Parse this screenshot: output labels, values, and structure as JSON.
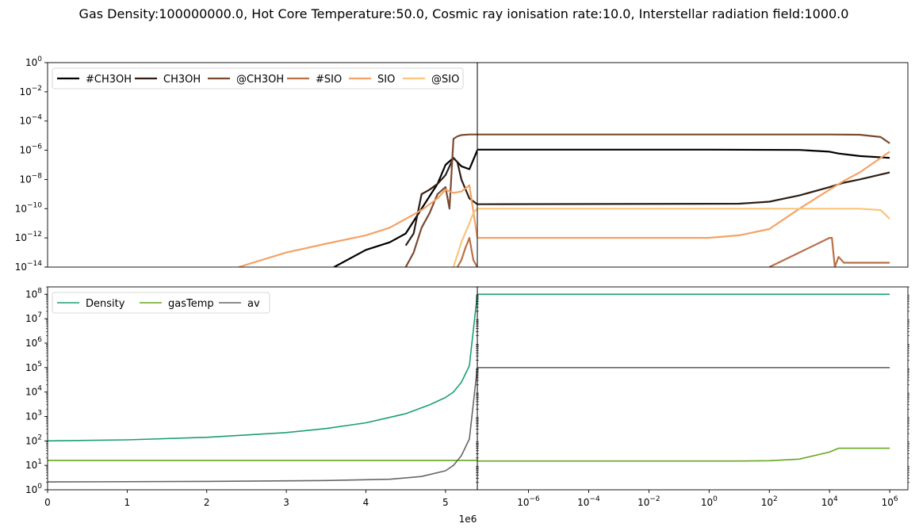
{
  "figure": {
    "suptitle": "Gas Density:100000000.0, Hot Core Temperature:50.0, Cosmic ray ionisation rate:10.0, Interstellar radiation field:1000.0",
    "offset_text": "1e6"
  },
  "chart_data": [
    {
      "type": "line",
      "panel": "top-left",
      "xscale": "linear",
      "yscale": "log",
      "xlim": [
        0,
        5400000
      ],
      "ylim": [
        1e-14,
        1
      ],
      "xticks": [],
      "yticks": [
        {
          "label": "10",
          "exp": "0",
          "value": 1
        },
        {
          "label": "10",
          "exp": "−2",
          "value": 0.01
        },
        {
          "label": "10",
          "exp": "−4",
          "value": 0.0001
        },
        {
          "label": "10",
          "exp": "−6",
          "value": 1e-06
        },
        {
          "label": "10",
          "exp": "−8",
          "value": 1e-08
        },
        {
          "label": "10",
          "exp": "−10",
          "value": 1e-10
        },
        {
          "label": "10",
          "exp": "−12",
          "value": 1e-12
        },
        {
          "label": "10",
          "exp": "−14",
          "value": 1e-14
        }
      ],
      "legend": {
        "placement": "top-left",
        "columns": 6
      },
      "series": [
        {
          "name": "#CH3OH",
          "color": "#000000",
          "x": [
            3600000,
            4000000,
            4300000,
            4500000,
            4700000,
            4900000,
            5000000,
            5100000,
            5200000,
            5300000,
            5400000
          ],
          "y": [
            1e-14,
            1.5e-13,
            5e-13,
            2e-12,
            1e-10,
            5e-09,
            1e-07,
            3e-07,
            8e-08,
            5e-08,
            1e-06
          ]
        },
        {
          "name": "CH3OH",
          "color": "#2e1e14",
          "x": [
            4500000,
            4600000,
            4700000,
            4800000,
            4900000,
            5000000,
            5100000,
            5150000,
            5200000,
            5300000,
            5400000
          ],
          "y": [
            3e-13,
            2e-12,
            1e-09,
            2e-09,
            5e-09,
            2e-08,
            3e-07,
            1.5e-07,
            1e-08,
            5e-10,
            2e-10
          ]
        },
        {
          "name": "@CH3OH",
          "color": "#7a4a30",
          "x": [
            4500000,
            4600000,
            4700000,
            4800000,
            4900000,
            5000000,
            5050000,
            5100000,
            5150000,
            5200000,
            5300000,
            5400000
          ],
          "y": [
            1e-14,
            1e-13,
            5e-12,
            5e-11,
            1e-09,
            3e-09,
            1e-10,
            6e-06,
            9e-06,
            1.1e-05,
            1.2e-05,
            1.2e-05
          ]
        },
        {
          "name": "#SIO",
          "color": "#b87048",
          "x": [
            5150000,
            5200000,
            5250000,
            5300000,
            5350000,
            5400000
          ],
          "y": [
            1e-14,
            3e-14,
            2e-13,
            1e-12,
            3e-14,
            1e-14
          ]
        },
        {
          "name": "SIO",
          "color": "#f4a266",
          "x": [
            2400000,
            3000000,
            3500000,
            4000000,
            4300000,
            4500000,
            4700000,
            4900000,
            5000000,
            5100000,
            5200000,
            5300000,
            5400000
          ],
          "y": [
            1e-14,
            1e-13,
            4e-13,
            1.5e-12,
            5e-12,
            2e-11,
            8e-11,
            5e-10,
            2e-09,
            1.2e-09,
            1.5e-09,
            4e-09,
            1e-12
          ]
        },
        {
          "name": "@SIO",
          "color": "#f8c57c",
          "x": [
            5100000,
            5200000,
            5300000,
            5350000,
            5400000
          ],
          "y": [
            1e-14,
            5e-13,
            1e-11,
            5e-11,
            1e-10
          ]
        }
      ]
    },
    {
      "type": "line",
      "panel": "top-right",
      "xscale": "log",
      "yscale": "log",
      "xlim": [
        2e-08,
        4000000
      ],
      "ylim": [
        1e-14,
        1
      ],
      "xticks": [],
      "yticks": [],
      "series": [
        {
          "name": "#CH3OH",
          "color": "#000000",
          "x": [
            2e-08,
            1,
            1000,
            10000,
            20000,
            100000,
            1000000
          ],
          "y": [
            1.1e-06,
            1.1e-06,
            1.05e-06,
            8e-07,
            6e-07,
            4e-07,
            3e-07
          ]
        },
        {
          "name": "CH3OH",
          "color": "#2e1e14",
          "x": [
            2e-08,
            10,
            100,
            1000,
            10000,
            30000,
            100000,
            1000000
          ],
          "y": [
            2e-10,
            2.2e-10,
            3e-10,
            8e-10,
            3e-09,
            6e-09,
            1e-08,
            3e-08
          ]
        },
        {
          "name": "@CH3OH",
          "color": "#7a4a30",
          "x": [
            2e-08,
            10000,
            100000,
            500000,
            1000000
          ],
          "y": [
            1.2e-05,
            1.2e-05,
            1.15e-05,
            8e-06,
            3e-06
          ]
        },
        {
          "name": "#SIO",
          "color": "#b87048",
          "x": [
            100,
            1000,
            10000,
            12000,
            15000,
            20000,
            25000,
            30000,
            50000,
            100000,
            1000000
          ],
          "y": [
            1e-14,
            1e-13,
            1e-12,
            1e-12,
            1e-14,
            5e-14,
            3e-14,
            2e-14,
            2e-14,
            2e-14,
            2e-14
          ]
        },
        {
          "name": "SIO",
          "color": "#f4a266",
          "x": [
            2e-08,
            1,
            10,
            100,
            1000,
            10000,
            30000,
            100000,
            1000000
          ],
          "y": [
            1e-12,
            1e-12,
            1.5e-12,
            4e-12,
            1e-10,
            2e-09,
            8e-09,
            3e-08,
            8e-07
          ]
        },
        {
          "name": "@SIO",
          "color": "#f8c57c",
          "x": [
            2e-08,
            10000,
            100000,
            500000,
            1000000
          ],
          "y": [
            1e-10,
            1e-10,
            1e-10,
            8e-11,
            2e-11
          ]
        }
      ]
    },
    {
      "type": "line",
      "panel": "bottom-left",
      "xscale": "linear",
      "yscale": "log",
      "xlim": [
        0,
        5400000
      ],
      "ylim": [
        1,
        200000000
      ],
      "xticks": [
        {
          "label": "0",
          "value": 0
        },
        {
          "label": "1",
          "value": 1000000
        },
        {
          "label": "2",
          "value": 2000000
        },
        {
          "label": "3",
          "value": 3000000
        },
        {
          "label": "4",
          "value": 4000000
        },
        {
          "label": "5",
          "value": 5000000
        }
      ],
      "yticks": [
        {
          "label": "10",
          "exp": "8",
          "value": 100000000
        },
        {
          "label": "10",
          "exp": "7",
          "value": 10000000
        },
        {
          "label": "10",
          "exp": "6",
          "value": 1000000
        },
        {
          "label": "10",
          "exp": "5",
          "value": 100000
        },
        {
          "label": "10",
          "exp": "4",
          "value": 10000
        },
        {
          "label": "10",
          "exp": "3",
          "value": 1000
        },
        {
          "label": "10",
          "exp": "2",
          "value": 100
        },
        {
          "label": "10",
          "exp": "1",
          "value": 10
        },
        {
          "label": "10",
          "exp": "0",
          "value": 1
        }
      ],
      "legend": {
        "placement": "top-left",
        "columns": 3
      },
      "series": [
        {
          "name": "Density",
          "color": "#1b9e77",
          "x": [
            0,
            1000000,
            2000000,
            3000000,
            3500000,
            4000000,
            4500000,
            4800000,
            5000000,
            5100000,
            5200000,
            5300000,
            5400000
          ],
          "y": [
            100,
            110,
            140,
            220,
            320,
            550,
            1300,
            3000,
            6000,
            10000,
            25000,
            120000,
            100000000
          ]
        },
        {
          "name": "gasTemp",
          "color": "#66a61e",
          "x": [
            0,
            5400000
          ],
          "y": [
            16,
            16
          ]
        },
        {
          "name": "av",
          "color": "#666666",
          "x": [
            0,
            2000000,
            3500000,
            4300000,
            4700000,
            5000000,
            5100000,
            5200000,
            5300000,
            5400000
          ],
          "y": [
            2.1,
            2.2,
            2.4,
            2.7,
            3.5,
            6,
            10,
            25,
            120,
            100000
          ]
        }
      ]
    },
    {
      "type": "line",
      "panel": "bottom-right",
      "xscale": "log",
      "yscale": "log",
      "xlim": [
        2e-08,
        4000000
      ],
      "ylim": [
        1,
        200000000
      ],
      "xticks": [
        {
          "label": "10",
          "exp": "−6",
          "value": 1e-06
        },
        {
          "label": "10",
          "exp": "−4",
          "value": 0.0001
        },
        {
          "label": "10",
          "exp": "−2",
          "value": 0.01
        },
        {
          "label": "10",
          "exp": "0",
          "value": 1
        },
        {
          "label": "10",
          "exp": "2",
          "value": 100
        },
        {
          "label": "10",
          "exp": "4",
          "value": 10000
        },
        {
          "label": "10",
          "exp": "6",
          "value": 1000000
        }
      ],
      "yticks": [],
      "series": [
        {
          "name": "Density",
          "color": "#1b9e77",
          "x": [
            2e-08,
            1000000
          ],
          "y": [
            100000000,
            100000000
          ]
        },
        {
          "name": "gasTemp",
          "color": "#66a61e",
          "x": [
            2e-08,
            10,
            100,
            1000,
            10000,
            20000,
            100000,
            1000000
          ],
          "y": [
            15,
            15,
            15.5,
            18,
            35,
            50,
            50,
            50
          ]
        },
        {
          "name": "av",
          "color": "#666666",
          "x": [
            2e-08,
            1000000
          ],
          "y": [
            100000,
            100000
          ]
        }
      ]
    }
  ]
}
